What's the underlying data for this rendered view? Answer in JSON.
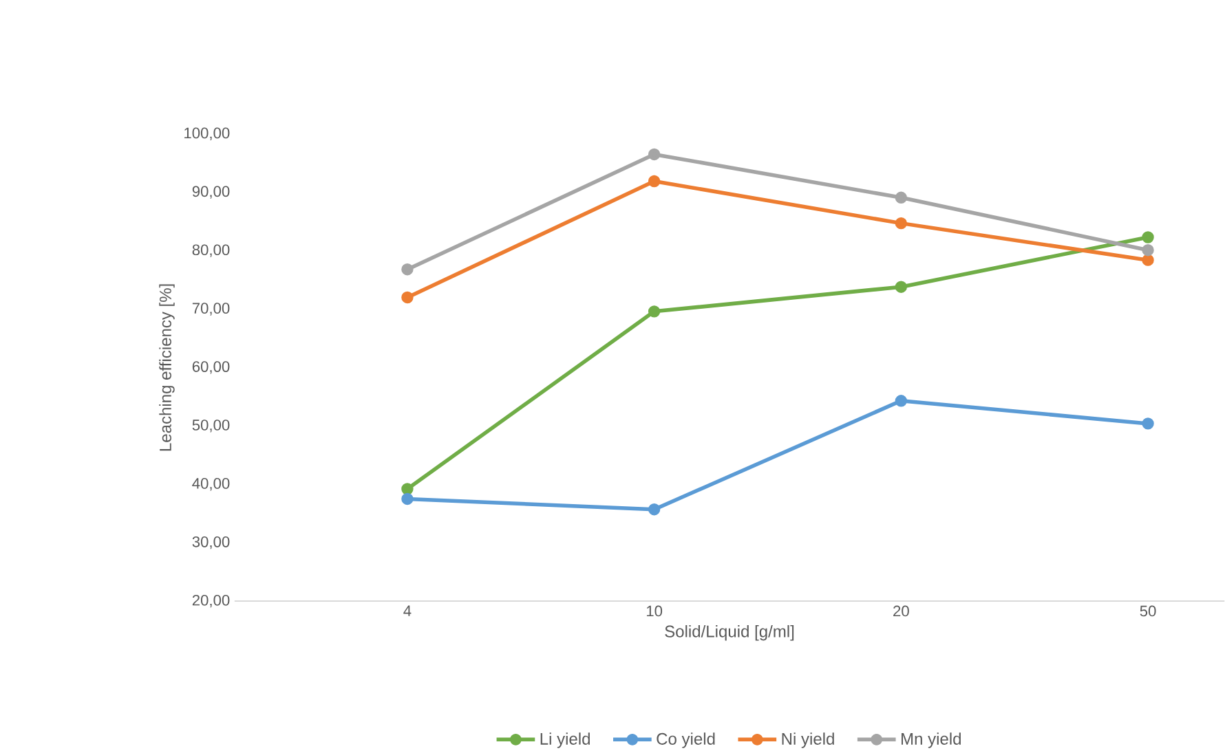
{
  "chart_data": {
    "type": "line",
    "xlabel": "Solid/Liquid [g/ml]",
    "ylabel": "Leaching efficiency  [%]",
    "categories": [
      "4",
      "10",
      "20",
      "50"
    ],
    "series": [
      {
        "name": "Li yield",
        "color": "#70ad47",
        "values": [
          39.2,
          69.6,
          73.8,
          82.3
        ]
      },
      {
        "name": "Co yield",
        "color": "#5b9bd5",
        "values": [
          37.5,
          35.7,
          54.3,
          50.4
        ]
      },
      {
        "name": "Ni yield",
        "color": "#ed7d31",
        "values": [
          72.0,
          91.9,
          84.7,
          78.4
        ]
      },
      {
        "name": "Mn yield",
        "color": "#a5a5a5",
        "values": [
          76.8,
          96.5,
          89.1,
          80.1
        ]
      }
    ],
    "ylim": [
      20,
      100
    ],
    "yticks": [
      {
        "value": 20,
        "label": "20,00"
      },
      {
        "value": 30,
        "label": "30,00"
      },
      {
        "value": 40,
        "label": "40,00"
      },
      {
        "value": 50,
        "label": "50,00"
      },
      {
        "value": 60,
        "label": "60,00"
      },
      {
        "value": 70,
        "label": "70,00"
      },
      {
        "value": 80,
        "label": "80,00"
      },
      {
        "value": 90,
        "label": "90,00"
      },
      {
        "value": 100,
        "label": "100,00"
      }
    ],
    "grid": false,
    "legend": "bottom",
    "marker": "circle",
    "line_style": "solid"
  }
}
